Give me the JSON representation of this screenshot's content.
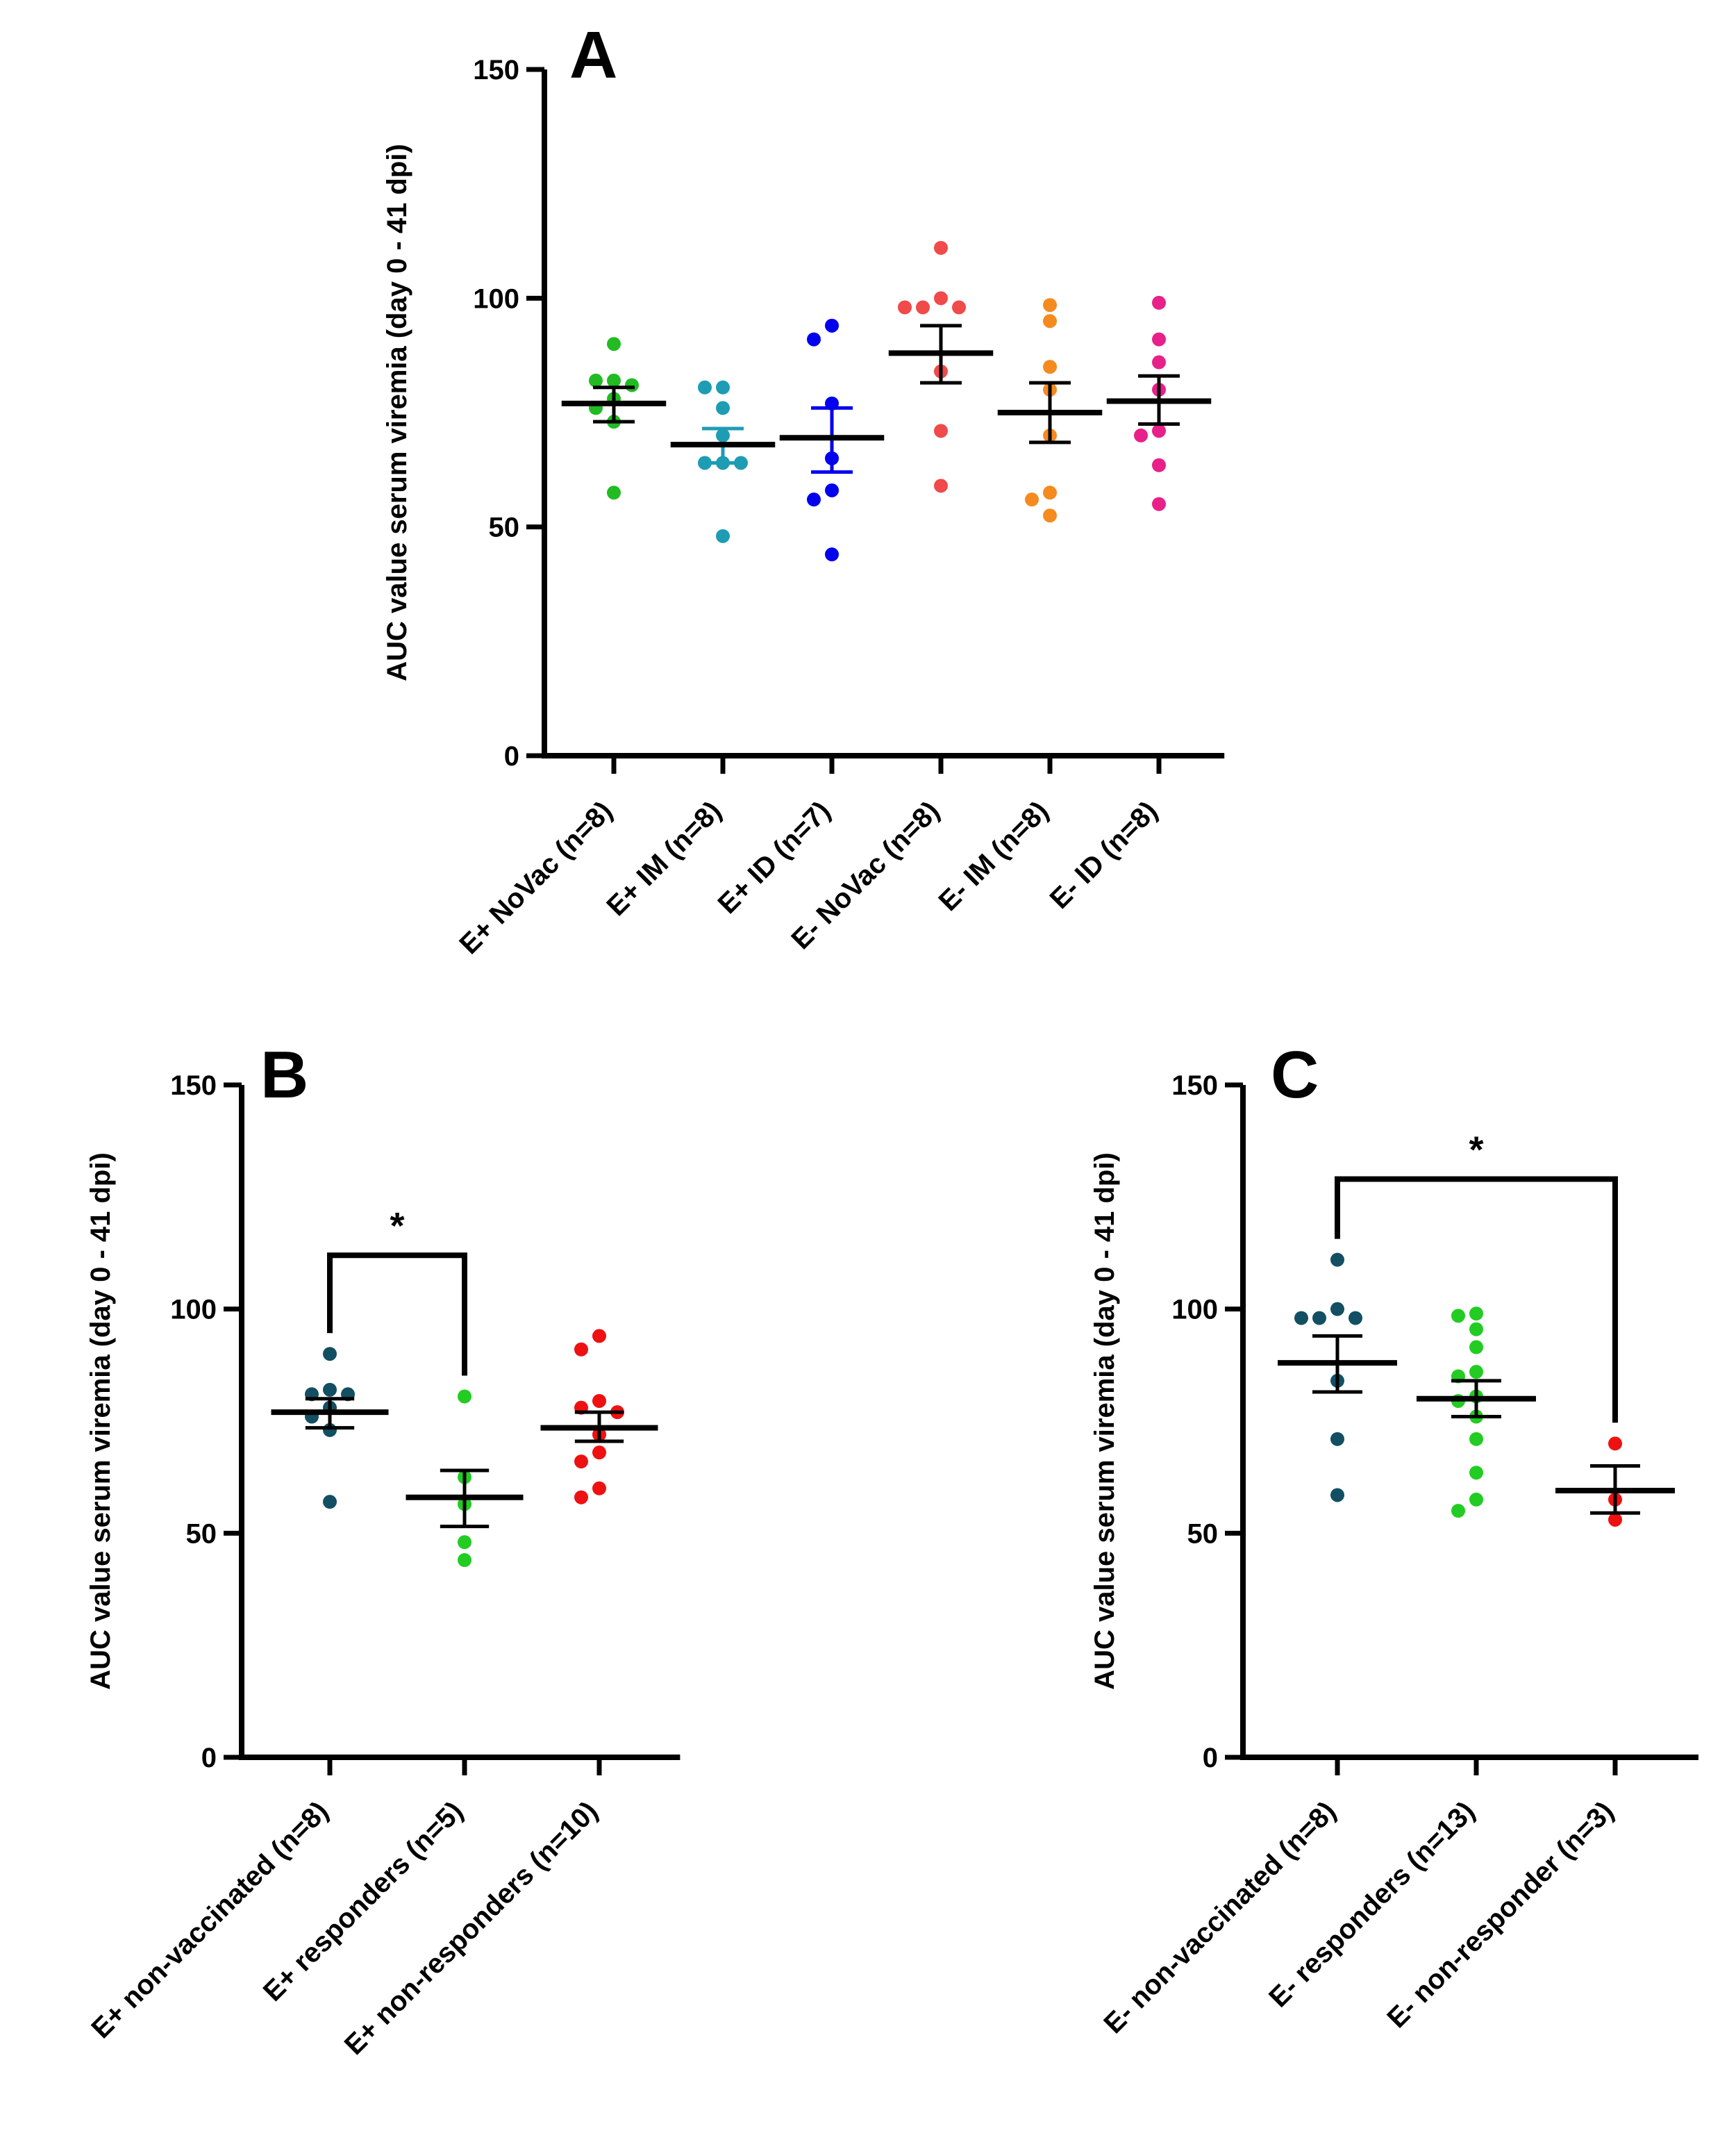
{
  "chart_data": [
    {
      "panel": "A",
      "type": "scatter",
      "ylabel": "AUC value serum viremia (day 0 - 41 dpi)",
      "ylim": [
        0,
        150
      ],
      "yticks": [
        0,
        50,
        100,
        150
      ],
      "categories": [
        "E+ NoVac (n=8)",
        "E+ IM (n=8)",
        "E+ ID (n=7)",
        "E- NoVac (n=8)",
        "E- IM (n=8)",
        "E- ID (n=8)"
      ],
      "colors": [
        "#22bb22",
        "#1e9cb4",
        "#0000ee",
        "#f04a4a",
        "#f58a1f",
        "#e8208a"
      ],
      "series": [
        {
          "name": "E+ NoVac (n=8)",
          "points": [
            90,
            82,
            82,
            81,
            78,
            76,
            73,
            57.5
          ],
          "mean": 77,
          "sem_low": 73,
          "sem_high": 80.5
        },
        {
          "name": "E+ IM (n=8)",
          "points": [
            80.5,
            80.5,
            76,
            70,
            64,
            64,
            64,
            48
          ],
          "mean": 68,
          "sem_low": 64,
          "sem_high": 71.5
        },
        {
          "name": "E+ ID (n=7)",
          "points": [
            94,
            91,
            77,
            65,
            58,
            56,
            44
          ],
          "mean": 69.5,
          "sem_low": 62,
          "sem_high": 76
        },
        {
          "name": "E- NoVac (n=8)",
          "points": [
            111,
            100,
            98,
            98,
            98,
            84,
            71,
            59
          ],
          "mean": 88,
          "sem_low": 81.5,
          "sem_high": 94
        },
        {
          "name": "E- IM (n=8)",
          "points": [
            98.5,
            95,
            85,
            80,
            70,
            57.5,
            56,
            52.5
          ],
          "mean": 75,
          "sem_low": 68.5,
          "sem_high": 81.5
        },
        {
          "name": "E- ID (n=8)",
          "points": [
            99,
            91,
            86,
            80,
            71,
            70,
            63.5,
            55
          ],
          "mean": 77.5,
          "sem_low": 72.5,
          "sem_high": 83
        }
      ]
    },
    {
      "panel": "B",
      "type": "scatter",
      "ylabel": "AUC value serum viremia (day 0 - 41 dpi)",
      "ylim": [
        0,
        150
      ],
      "yticks": [
        0,
        50,
        100,
        150
      ],
      "categories": [
        "E+ non-vaccinated (n=8)",
        "E+ responders (n=5)",
        "E+ non-responders (n=10)"
      ],
      "colors": [
        "#134f63",
        "#22cc22",
        "#ee1111"
      ],
      "series": [
        {
          "name": "E+ non-vaccinated (n=8)",
          "points": [
            90,
            82,
            81,
            81,
            78,
            76,
            73,
            57
          ],
          "mean": 77,
          "sem_low": 73.5,
          "sem_high": 80
        },
        {
          "name": "E+ responders (n=5)",
          "points": [
            80.5,
            62.5,
            56.5,
            48,
            44
          ],
          "mean": 58,
          "sem_low": 51.5,
          "sem_high": 64
        },
        {
          "name": "E+ non-responders (n=10)",
          "points": [
            94,
            91,
            79.5,
            78,
            77,
            72,
            68,
            66,
            60,
            58
          ],
          "mean": 73.5,
          "sem_low": 70.5,
          "sem_high": 77
        }
      ],
      "significance": {
        "from": 0,
        "to": 1,
        "label": "*",
        "y": 112
      }
    },
    {
      "panel": "C",
      "type": "scatter",
      "ylabel": "AUC value serum viremia (day 0 - 41 dpi)",
      "ylim": [
        0,
        150
      ],
      "yticks": [
        0,
        50,
        100,
        150
      ],
      "categories": [
        "E- non-vaccinated (n=8)",
        "E- responders (n=13)",
        "E- non-responder (n=3)"
      ],
      "colors": [
        "#134f63",
        "#22cc22",
        "#ee1111"
      ],
      "series": [
        {
          "name": "E- non-vaccinated (n=8)",
          "points": [
            111,
            100,
            98,
            98,
            98,
            84,
            71,
            58.5
          ],
          "mean": 88,
          "sem_low": 81.5,
          "sem_high": 94
        },
        {
          "name": "E- responders (n=13)",
          "points": [
            99,
            98.5,
            95.5,
            91.5,
            86,
            85,
            80.5,
            79.5,
            76,
            71,
            63.5,
            57.5,
            55
          ],
          "mean": 80,
          "sem_low": 76,
          "sem_high": 84
        },
        {
          "name": "E- non-responder (n=3)",
          "points": [
            70,
            57.5,
            53
          ],
          "mean": 59.5,
          "sem_low": 54.5,
          "sem_high": 65
        }
      ],
      "significance": {
        "from": 0,
        "to": 2,
        "label": "*",
        "y": 129
      }
    }
  ]
}
